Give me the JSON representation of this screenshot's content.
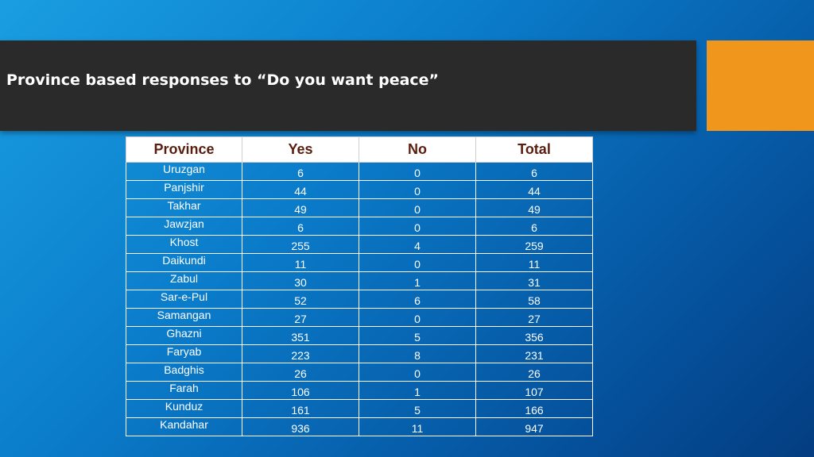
{
  "slide": {
    "title": "Province based responses to “Do you want peace”",
    "colors": {
      "title_bar": "#2a2a2a",
      "accent_box": "#f0961c",
      "header_text": "#5a1e0e"
    }
  },
  "table": {
    "headers": [
      "Province",
      "Yes",
      "No",
      "Total"
    ],
    "rows": [
      [
        "Uruzgan",
        "6",
        "0",
        "6"
      ],
      [
        "Panjshir",
        "44",
        "0",
        "44"
      ],
      [
        "Takhar",
        "49",
        "0",
        "49"
      ],
      [
        "Jawzjan",
        "6",
        "0",
        "6"
      ],
      [
        "Khost",
        "255",
        "4",
        "259"
      ],
      [
        "Daikundi",
        "11",
        "0",
        "11"
      ],
      [
        "Zabul",
        "30",
        "1",
        "31"
      ],
      [
        "Sar-e-Pul",
        "52",
        "6",
        "58"
      ],
      [
        "Samangan",
        "27",
        "0",
        "27"
      ],
      [
        "Ghazni",
        "351",
        "5",
        "356"
      ],
      [
        "Faryab",
        "223",
        "8",
        "231"
      ],
      [
        "Badghis",
        "26",
        "0",
        "26"
      ],
      [
        "Farah",
        "106",
        "1",
        "107"
      ],
      [
        "Kunduz",
        "161",
        "5",
        "166"
      ],
      [
        "Kandahar",
        "936",
        "11",
        "947"
      ]
    ]
  }
}
